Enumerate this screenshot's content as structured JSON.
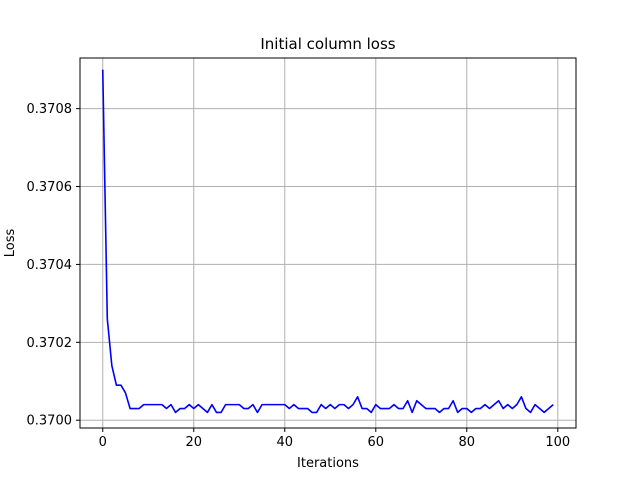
{
  "chart_data": {
    "type": "line",
    "title": "Initial column loss",
    "xlabel": "Iterations",
    "ylabel": "Loss",
    "xlim": [
      -5,
      104
    ],
    "ylim": [
      0.36998,
      0.37093
    ],
    "grid": true,
    "x_ticks": [
      0,
      20,
      40,
      60,
      80,
      100
    ],
    "y_ticks": [
      0.37,
      0.3702,
      0.3704,
      0.3706,
      0.3708
    ],
    "y_tick_labels": [
      "0.3700",
      "0.3702",
      "0.3704",
      "0.3706",
      "0.3708"
    ],
    "series": [
      {
        "color": "#0000ff",
        "x": [
          0,
          1,
          2,
          3,
          4,
          5,
          6,
          7,
          8,
          9,
          10,
          11,
          12,
          13,
          14,
          15,
          16,
          17,
          18,
          19,
          20,
          21,
          22,
          23,
          24,
          25,
          26,
          27,
          28,
          29,
          30,
          31,
          32,
          33,
          34,
          35,
          36,
          37,
          38,
          39,
          40,
          41,
          42,
          43,
          44,
          45,
          46,
          47,
          48,
          49,
          50,
          51,
          52,
          53,
          54,
          55,
          56,
          57,
          58,
          59,
          60,
          61,
          62,
          63,
          64,
          65,
          66,
          67,
          68,
          69,
          70,
          71,
          72,
          73,
          74,
          75,
          76,
          77,
          78,
          79,
          80,
          81,
          82,
          83,
          84,
          85,
          86,
          87,
          88,
          89,
          90,
          91,
          92,
          93,
          94,
          95,
          96,
          97,
          98,
          99
        ],
        "y": [
          0.3709,
          0.37026,
          0.37014,
          0.37009,
          0.37009,
          0.37007,
          0.37003,
          0.37003,
          0.37003,
          0.37004,
          0.37004,
          0.37004,
          0.37004,
          0.37004,
          0.37003,
          0.37004,
          0.37002,
          0.37003,
          0.37003,
          0.37004,
          0.37003,
          0.37004,
          0.37003,
          0.37002,
          0.37004,
          0.37002,
          0.37002,
          0.37004,
          0.37004,
          0.37004,
          0.37004,
          0.37003,
          0.37003,
          0.37004,
          0.37002,
          0.37004,
          0.37004,
          0.37004,
          0.37004,
          0.37004,
          0.37004,
          0.37003,
          0.37004,
          0.37003,
          0.37003,
          0.37003,
          0.37002,
          0.37002,
          0.37004,
          0.37003,
          0.37004,
          0.37003,
          0.37004,
          0.37004,
          0.37003,
          0.37004,
          0.37006,
          0.37003,
          0.37003,
          0.37002,
          0.37004,
          0.37003,
          0.37003,
          0.37003,
          0.37004,
          0.37003,
          0.37003,
          0.37005,
          0.37002,
          0.37005,
          0.37004,
          0.37003,
          0.37003,
          0.37003,
          0.37002,
          0.37003,
          0.37003,
          0.37005,
          0.37002,
          0.37003,
          0.37003,
          0.37002,
          0.37003,
          0.37003,
          0.37004,
          0.37003,
          0.37004,
          0.37005,
          0.37003,
          0.37004,
          0.37003,
          0.37004,
          0.37006,
          0.37003,
          0.37002,
          0.37004,
          0.37003,
          0.37002,
          0.37003,
          0.37004
        ]
      }
    ]
  }
}
